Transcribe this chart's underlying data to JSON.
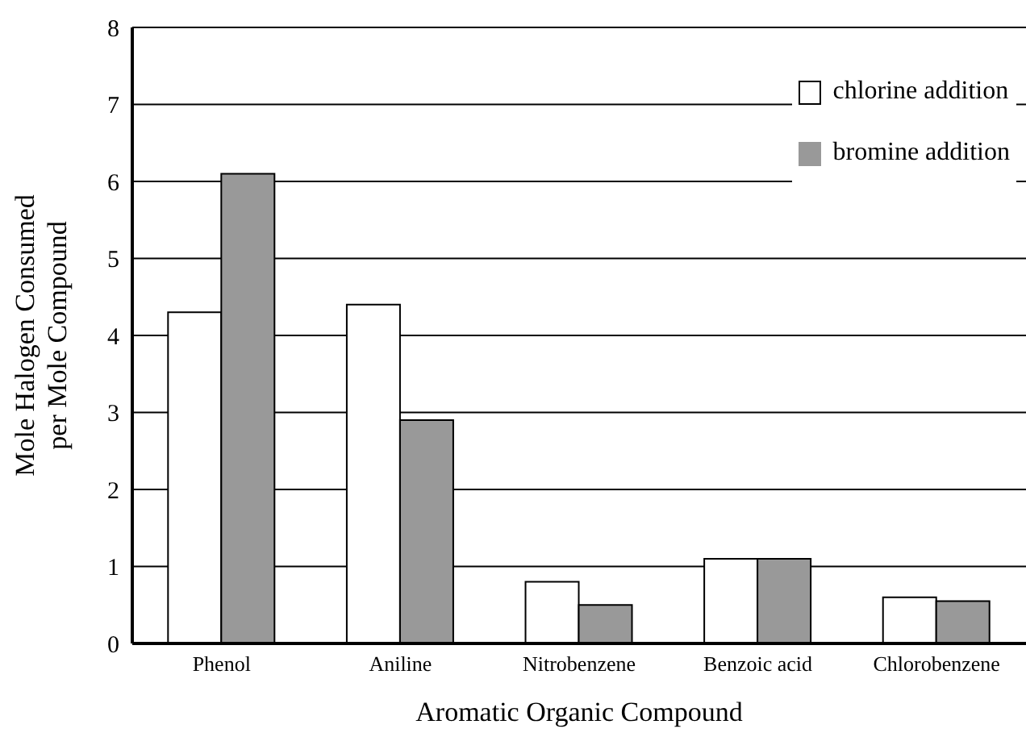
{
  "chart_data": {
    "type": "bar",
    "categories": [
      "Phenol",
      "Aniline",
      "Nitrobenzene",
      "Benzoic acid",
      "Chlorobenzene"
    ],
    "series": [
      {
        "name": "chlorine addition",
        "color": "#ffffff",
        "values": [
          4.3,
          4.4,
          0.8,
          1.1,
          0.6
        ]
      },
      {
        "name": "bromine addition",
        "color": "#999999",
        "values": [
          6.1,
          2.9,
          0.5,
          1.1,
          0.55
        ]
      }
    ],
    "xlabel": "Aromatic Organic Compound",
    "ylabel": "Mole Halogen Consumed per Mole Compound",
    "ylim": [
      0,
      8
    ],
    "yticks": [
      0,
      1,
      2,
      3,
      4,
      5,
      6,
      7,
      8
    ],
    "grid": "y",
    "legend": "top right"
  }
}
